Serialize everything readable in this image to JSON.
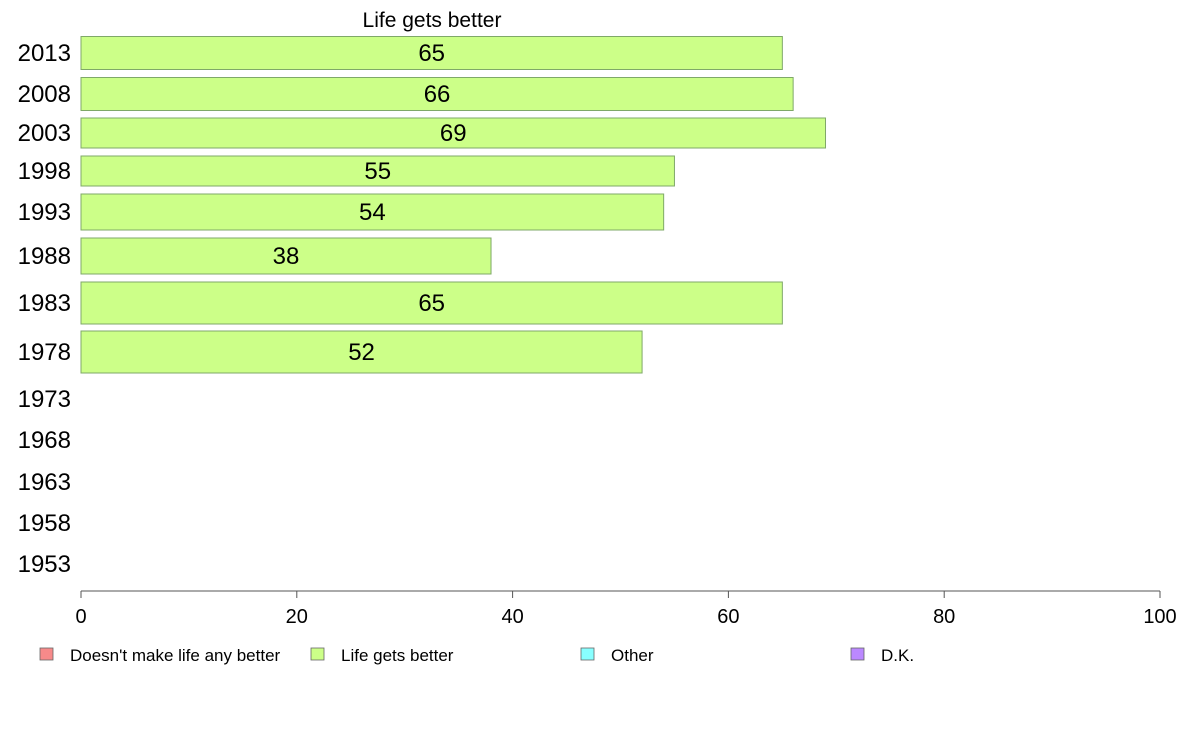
{
  "chart_data": {
    "type": "bar",
    "orientation": "horizontal",
    "title": "Life gets better",
    "categories": [
      "2013",
      "2008",
      "2003",
      "1998",
      "1993",
      "1988",
      "1983",
      "1978",
      "1973",
      "1968",
      "1963",
      "1958",
      "1953"
    ],
    "series": [
      {
        "name": "Life gets better",
        "color": "#ccff88",
        "values": [
          65,
          66,
          69,
          55,
          54,
          38,
          65,
          52,
          null,
          null,
          null,
          null,
          null
        ]
      }
    ],
    "xlim": [
      0,
      100
    ],
    "xticks": [
      0,
      20,
      40,
      60,
      80,
      100
    ],
    "grid": false,
    "legend_position": "bottom",
    "legend": [
      {
        "label": "Doesn't make life any better",
        "color": "#f78a8a"
      },
      {
        "label": "Life gets better",
        "color": "#ccff88"
      },
      {
        "label": "Other",
        "color": "#88ffff"
      },
      {
        "label": "D.K.",
        "color": "#bb88ff"
      }
    ]
  }
}
